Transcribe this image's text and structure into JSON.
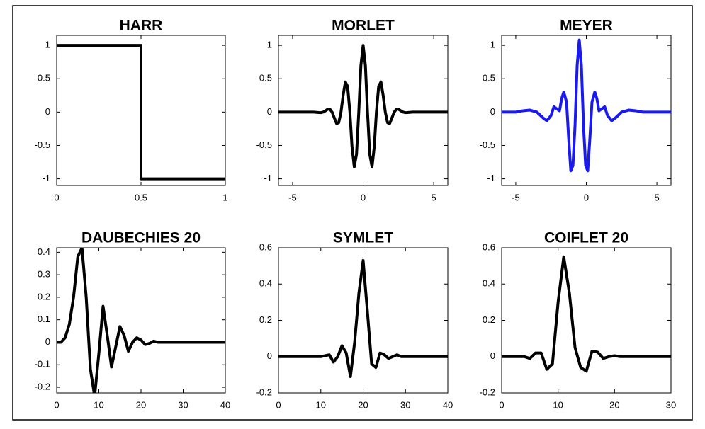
{
  "chart_data": [
    {
      "type": "line",
      "title": "HARR",
      "color": "#000000",
      "x": [
        0,
        0.5,
        0.5,
        1
      ],
      "values": [
        1,
        1,
        -1,
        -1
      ],
      "xlim": [
        0,
        1
      ],
      "ylim": [
        -1.1,
        1.15
      ],
      "xticks": [
        0,
        0.5,
        1
      ],
      "yticks": [
        -1,
        -0.5,
        0,
        0.5,
        1
      ]
    },
    {
      "type": "line",
      "title": "MORLET",
      "color": "#000000",
      "x": [
        -6,
        -5,
        -4,
        -3.5,
        -3.14,
        -2.98,
        -2.83,
        -2.67,
        -2.51,
        -2.36,
        -2.2,
        -2.04,
        -1.88,
        -1.73,
        -1.57,
        -1.41,
        -1.26,
        -1.1,
        -0.94,
        -0.79,
        -0.63,
        -0.47,
        -0.31,
        -0.16,
        0,
        0.16,
        0.31,
        0.47,
        0.63,
        0.79,
        0.94,
        1.1,
        1.26,
        1.41,
        1.57,
        1.73,
        1.88,
        2.04,
        2.2,
        2.36,
        2.51,
        2.67,
        2.83,
        2.98,
        3.14,
        3.5,
        4,
        5,
        6
      ],
      "values": [
        0,
        0,
        0,
        0,
        -0.007,
        -0.008,
        0,
        0.02,
        0.043,
        0.044,
        0,
        -0.088,
        -0.171,
        -0.158,
        0,
        0.262,
        0.452,
        0.386,
        0,
        -0.518,
        -0.82,
        -0.633,
        0,
        0.698,
        1,
        0.698,
        0,
        -0.633,
        -0.82,
        -0.518,
        0,
        0.386,
        0.452,
        0.262,
        0,
        -0.158,
        -0.171,
        -0.088,
        0,
        0.044,
        0.043,
        0.02,
        0,
        -0.008,
        -0.007,
        0,
        0,
        0,
        0
      ],
      "xlim": [
        -6,
        6
      ],
      "ylim": [
        -1.1,
        1.15
      ],
      "xticks": [
        -5,
        0,
        5
      ],
      "yticks": [
        -1,
        -0.5,
        0,
        0.5,
        1
      ]
    },
    {
      "type": "line",
      "title": "MEYER",
      "color": "#1a1aee",
      "x": [
        -6,
        -5.5,
        -5,
        -4.5,
        -4,
        -3.5,
        -3.1,
        -2.8,
        -2.5,
        -2.3,
        -2.1,
        -1.9,
        -1.75,
        -1.6,
        -1.4,
        -1.25,
        -1.1,
        -0.95,
        -0.8,
        -0.65,
        -0.5,
        -0.35,
        -0.2,
        -0.05,
        0.1,
        0.25,
        0.4,
        0.6,
        0.75,
        0.9,
        1.1,
        1.3,
        1.5,
        1.8,
        2.1,
        2.5,
        3,
        3.5,
        4,
        4.5,
        5,
        6
      ],
      "values": [
        0,
        0,
        0,
        0.02,
        0.03,
        0,
        -0.08,
        -0.13,
        -0.05,
        0.08,
        0.05,
        0.02,
        0.2,
        0.3,
        0.15,
        -0.4,
        -0.88,
        -0.8,
        -0.2,
        0.7,
        1.08,
        0.7,
        -0.2,
        -0.8,
        -0.88,
        -0.4,
        0.15,
        0.3,
        0.2,
        0.02,
        0.05,
        0.08,
        -0.05,
        -0.13,
        -0.08,
        0,
        0.03,
        0.02,
        0,
        0,
        0,
        0
      ],
      "xlim": [
        -6,
        6
      ],
      "ylim": [
        -1.1,
        1.15
      ],
      "xticks": [
        -5,
        0,
        5
      ],
      "yticks": [
        -1,
        -0.5,
        0,
        0.5,
        1
      ]
    },
    {
      "type": "line",
      "title": "DAUBECHIES 20",
      "color": "#000000",
      "x": [
        0,
        1,
        2,
        3,
        4,
        5,
        6,
        7,
        8,
        9,
        10,
        11,
        12,
        13,
        14,
        15,
        16,
        17,
        18,
        19,
        20,
        21,
        22,
        23,
        24,
        25,
        40
      ],
      "values": [
        0,
        0,
        0.02,
        0.08,
        0.2,
        0.38,
        0.42,
        0.2,
        -0.12,
        -0.24,
        -0.05,
        0.16,
        0.03,
        -0.11,
        -0.02,
        0.07,
        0.03,
        -0.04,
        0,
        0.02,
        0.01,
        -0.01,
        -0.005,
        0.005,
        0,
        0,
        0
      ],
      "xlim": [
        0,
        40
      ],
      "ylim": [
        -0.225,
        0.42
      ],
      "xticks": [
        0,
        10,
        20,
        30,
        40
      ],
      "yticks": [
        -0.2,
        -0.1,
        0,
        0.1,
        0.2,
        0.3,
        0.4
      ]
    },
    {
      "type": "line",
      "title": "SYMLET",
      "color": "#000000",
      "x": [
        0,
        10,
        12,
        13,
        14,
        15,
        16,
        17,
        18,
        19,
        20,
        21,
        22,
        23,
        24,
        25,
        26,
        27,
        28,
        29,
        30,
        40
      ],
      "values": [
        0,
        0,
        0.01,
        -0.03,
        0,
        0.06,
        0.02,
        -0.11,
        0.08,
        0.35,
        0.53,
        0.25,
        -0.04,
        -0.06,
        0.02,
        0.01,
        -0.01,
        0,
        0.01,
        0,
        0,
        0
      ],
      "xlim": [
        0,
        40
      ],
      "ylim": [
        -0.2,
        0.6
      ],
      "xticks": [
        0,
        10,
        20,
        30,
        40
      ],
      "yticks": [
        -0.2,
        0,
        0.2,
        0.4,
        0.6
      ]
    },
    {
      "type": "line",
      "title": "COIFLET 20",
      "color": "#000000",
      "x": [
        0,
        4,
        5,
        6,
        7,
        8,
        9,
        10,
        11,
        12,
        13,
        14,
        15,
        16,
        17,
        18,
        19,
        20,
        21,
        30
      ],
      "values": [
        0,
        0,
        -0.01,
        0.02,
        0.02,
        -0.07,
        -0.04,
        0.3,
        0.55,
        0.35,
        0.05,
        -0.06,
        -0.08,
        0.03,
        0.025,
        -0.01,
        0,
        0.005,
        0,
        0
      ],
      "xlim": [
        0,
        30
      ],
      "ylim": [
        -0.2,
        0.6
      ],
      "xticks": [
        0,
        10,
        20,
        30
      ],
      "yticks": [
        -0.2,
        0,
        0.2,
        0.4,
        0.6
      ]
    }
  ]
}
